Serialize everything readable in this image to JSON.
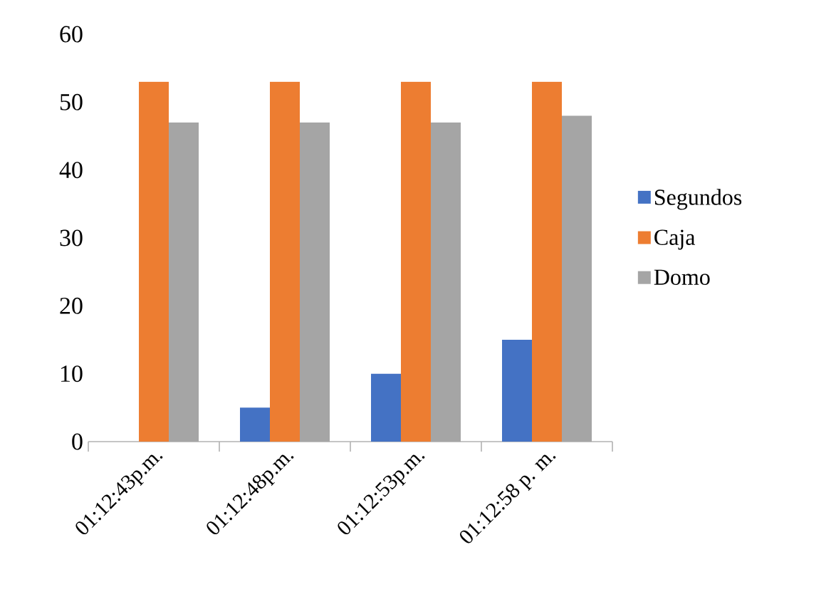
{
  "chart_data": {
    "type": "bar",
    "categories": [
      "01:12:43p.m.",
      "01:12:48p.m.",
      "01:12:53p.m.",
      "01:12:58 p. m."
    ],
    "series": [
      {
        "name": "Segundos",
        "color": "#4472c4",
        "values": [
          0,
          5,
          10,
          15
        ]
      },
      {
        "name": "Caja",
        "color": "#ed7d31",
        "values": [
          53,
          53,
          53,
          53
        ]
      },
      {
        "name": "Domo",
        "color": "#a5a5a5",
        "values": [
          47,
          47,
          47,
          48
        ]
      }
    ],
    "ylim": [
      0,
      60
    ],
    "yticks": [
      0,
      10,
      20,
      30,
      40,
      50,
      60
    ],
    "grid": false,
    "legend": "right"
  }
}
